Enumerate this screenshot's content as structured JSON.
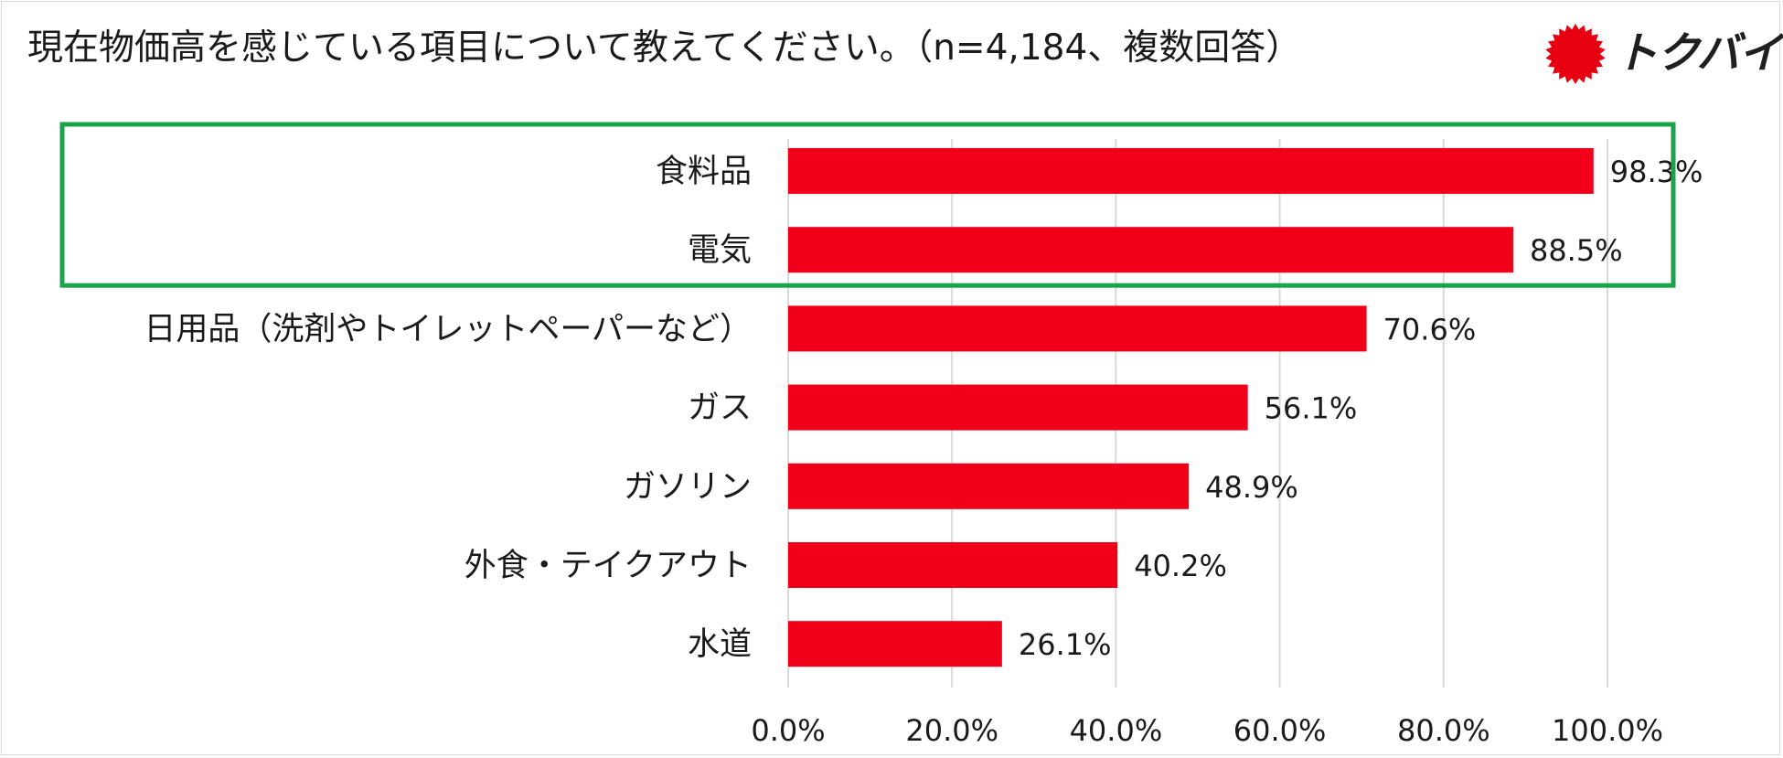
{
  "title": "現在物価高を感じている項目について教えてください。（n=4,184、複数回答）",
  "brand": {
    "name": "トクバイ",
    "color": "#e60012"
  },
  "colors": {
    "bar": "#f00019",
    "highlight_box": "#1aa34a",
    "grid": "#d9d9d9"
  },
  "chart_data": {
    "type": "bar",
    "orientation": "horizontal",
    "categories": [
      "食料品",
      "電気",
      "日用品（洗剤やトイレットペーパーなど）",
      "ガス",
      "ガソリン",
      "外食・テイクアウト",
      "水道"
    ],
    "values": [
      98.3,
      88.5,
      70.6,
      56.1,
      48.9,
      40.2,
      26.1
    ],
    "data_labels": [
      "98.3%",
      "88.5%",
      "70.6%",
      "56.1%",
      "48.9%",
      "40.2%",
      "26.1%"
    ],
    "x_ticks": [
      0,
      20,
      40,
      60,
      80,
      100
    ],
    "x_tick_labels": [
      "0.0%",
      "20.0%",
      "40.0%",
      "60.0%",
      "80.0%",
      "100.0%"
    ],
    "xlim": [
      0,
      100
    ],
    "grid": true,
    "highlighted_categories": [
      "食料品",
      "電気"
    ]
  }
}
